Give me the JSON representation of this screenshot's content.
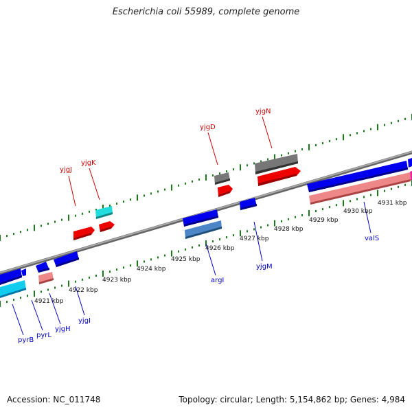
{
  "title": "Escherichia coli 55989, complete genome",
  "footer": {
    "accession": "Accession: NC_011748",
    "stats": "Topology: circular; Length: 5,154,862 bp; Genes: 4,984"
  },
  "colors": {
    "forward_label": "#cc0000",
    "reverse_label": "#0000cc",
    "tick": "#1a7a1a",
    "backbone": "#888888"
  },
  "kbp_labels": [
    "4921 kbp",
    "4922 kbp",
    "4923 kbp",
    "4924 kbp",
    "4925 kbp",
    "4926 kbp",
    "4927 kbp",
    "4928 kbp",
    "4929 kbp",
    "4930 kbp",
    "4931 kbp"
  ],
  "forward_gene_labels": [
    "yjgJ",
    "yjgK",
    "yjgD",
    "yjgN"
  ],
  "reverse_gene_labels": [
    "pyrB",
    "pyrL",
    "yjgH",
    "yjgI",
    "argI",
    "yjgM",
    "valS"
  ]
}
